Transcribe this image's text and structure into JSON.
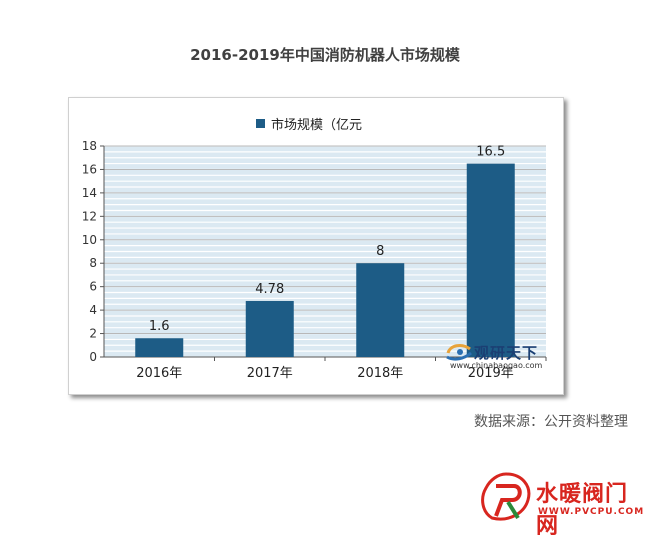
{
  "title": "2016-2019年中国消防机器人市场规模",
  "source_note": "数据来源：公开资料整理",
  "watermark": {
    "name": "观研天下",
    "url": "www.chinabaogao.com"
  },
  "site_logo": {
    "name": "水暖阀门网",
    "url": "WWW.PVCPU.COM"
  },
  "colors": {
    "bar": "#1d5c86",
    "grid": "#b8b8b8",
    "plot_bg": "#dbe9f2"
  },
  "chart_data": {
    "type": "bar",
    "title": "2016-2019年中国消防机器人市场规模",
    "categories": [
      "2016年",
      "2017年",
      "2018年",
      "2019年"
    ],
    "series": [
      {
        "name": "市场规模（亿元",
        "values": [
          1.6,
          4.78,
          8,
          16.5
        ]
      }
    ],
    "data_labels": [
      "1.6",
      "4.78",
      "8",
      "16.5"
    ],
    "ylim": [
      0,
      18
    ],
    "yticks": [
      0,
      2,
      4,
      6,
      8,
      10,
      12,
      14,
      16,
      18
    ],
    "grid": true,
    "legend": "top-center"
  }
}
